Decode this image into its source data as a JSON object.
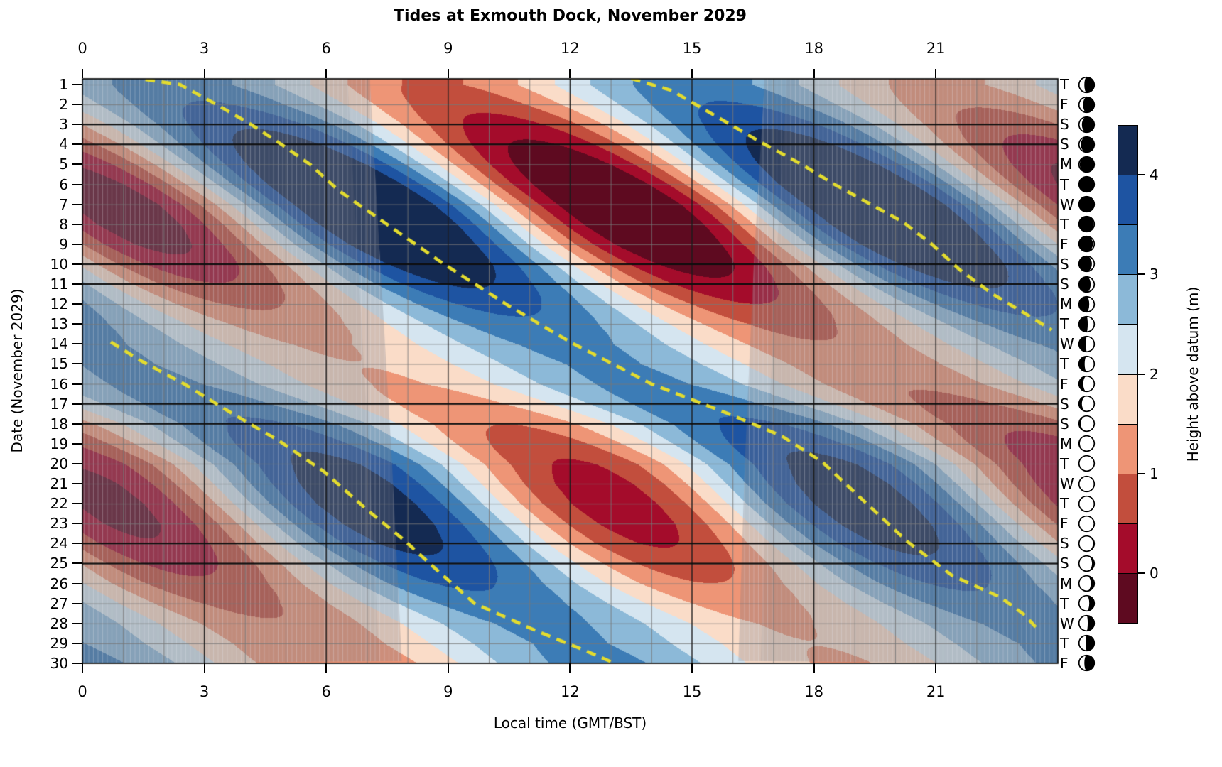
{
  "title": "Tides at Exmouth Dock, November 2029",
  "xlabel": "Local time (GMT/BST)",
  "ylabel": "Date (November 2029)",
  "chart_data": {
    "type": "heatmap",
    "subtype": "filled_contour_tide_raster",
    "title": "Tides at Exmouth Dock, November 2029",
    "xlabel": "Local time (GMT/BST)",
    "ylabel": "Date (November 2029)",
    "x_range_hours": [
      0,
      24
    ],
    "y_range_days": [
      1,
      30
    ],
    "x_ticks": [
      0,
      3,
      6,
      9,
      12,
      15,
      18,
      21
    ],
    "grid": {
      "minor_hour_step": 1,
      "major_hour_step": 3,
      "weekend_dates": [
        3,
        4,
        10,
        11,
        17,
        18,
        24,
        25
      ]
    },
    "colorbar": {
      "label": "Height above datum (m)",
      "levels": [
        -0.5,
        0,
        0.5,
        1,
        1.5,
        2,
        2.5,
        3,
        3.5,
        4,
        4.5
      ],
      "colors": [
        "#5e0a20",
        "#a40c2b",
        "#c24e3d",
        "#ee9576",
        "#fadcc8",
        "#d5e5f0",
        "#8cb9d8",
        "#3c7cb6",
        "#1e54a2",
        "#142a52"
      ],
      "tick_labels": [
        4,
        3,
        2,
        1,
        0
      ]
    },
    "tide_model": {
      "mean_level_m": 2.2,
      "semidiurnal_period_h": 12.42,
      "diurnal_amplitude_m": 0.2,
      "diurnal_period_h": 24.84,
      "diurnal_phase_offset_h": 6.2,
      "amplitude_m": [
        1.08,
        1.35,
        1.72,
        2.1,
        2.44,
        2.69,
        2.8,
        2.75,
        2.55,
        2.25,
        1.87,
        1.49,
        1.17,
        0.96,
        0.89,
        0.95,
        1.13,
        1.4,
        1.7,
        1.97,
        2.14,
        2.2,
        2.13,
        1.95,
        1.68,
        1.39,
        1.13,
        0.95,
        0.89,
        0.97
      ],
      "high_water_hour": [
        2.4,
        3.28,
        4.15,
        4.88,
        5.6,
        6.3,
        7.0,
        7.6,
        8.2,
        8.9,
        9.6,
        10.4,
        11.25,
        12.1,
        13.05,
        14.0,
        15.3,
        16.6,
        17.45,
        18.3,
        18.8,
        19.3,
        19.85,
        20.4,
        21.05,
        21.7,
        22.55,
        23.5,
        24.2,
        24.9
      ]
    },
    "night_shading": {
      "overlay_color": "#7d7d88",
      "outer_alpha": 0.3,
      "inner_alpha": 0.14,
      "twilight_width_h": 0.55,
      "hatch_spacing_px": 6.5,
      "sunrise": [
        [
          1,
          7.08
        ],
        [
          10,
          7.33
        ],
        [
          20,
          7.62
        ],
        [
          30,
          7.86
        ]
      ],
      "sunset": [
        [
          1,
          16.78
        ],
        [
          10,
          16.52
        ],
        [
          20,
          16.3
        ],
        [
          30,
          16.14
        ]
      ]
    },
    "lunar_transit_dashes": {
      "color": "#e3dc2f",
      "curves": [
        [
          [
            0.75,
            1.55
          ],
          [
            1,
            2.4
          ],
          [
            2,
            3.3
          ],
          [
            3,
            4.15
          ],
          [
            4,
            4.9
          ],
          [
            5,
            5.6
          ],
          [
            6.3,
            6.3
          ],
          [
            8.3,
            7.7
          ],
          [
            10,
            8.9
          ],
          [
            12.1,
            10.5
          ],
          [
            13.9,
            12.0
          ],
          [
            16,
            14.0
          ],
          [
            17.5,
            15.9
          ],
          [
            18.6,
            17.2
          ],
          [
            19.9,
            18.2
          ],
          [
            22,
            19.3
          ],
          [
            23.9,
            20.3
          ],
          [
            25.6,
            21.4
          ],
          [
            26.7,
            22.6
          ],
          [
            27.6,
            23.2
          ],
          [
            28.4,
            23.55
          ]
        ],
        [
          [
            0.7,
            13.5
          ],
          [
            1.3,
            14.5
          ],
          [
            2.6,
            15.6
          ],
          [
            3.9,
            16.7
          ],
          [
            5.0,
            17.7
          ],
          [
            6.0,
            18.5
          ],
          [
            7.0,
            19.4
          ],
          [
            7.9,
            20.2
          ],
          [
            9.0,
            20.9
          ],
          [
            10.3,
            21.6
          ],
          [
            11.5,
            22.4
          ],
          [
            12.6,
            23.3
          ],
          [
            13.3,
            23.85
          ]
        ],
        [
          [
            13.9,
            0.7
          ],
          [
            14.8,
            1.4
          ],
          [
            16.0,
            2.5
          ],
          [
            17.5,
            3.7
          ],
          [
            18.8,
            4.8
          ],
          [
            20.4,
            5.95
          ],
          [
            22.3,
            7.0
          ],
          [
            23.8,
            7.9
          ],
          [
            25.1,
            8.6
          ],
          [
            27.0,
            9.65
          ],
          [
            28.4,
            11.2
          ],
          [
            29.3,
            12.3
          ],
          [
            30.0,
            13.1
          ]
        ]
      ]
    },
    "days": [
      {
        "date": 1,
        "weekday": "T",
        "moon_illum": 0.35,
        "waxing": false
      },
      {
        "date": 2,
        "weekday": "F",
        "moon_illum": 0.27,
        "waxing": false
      },
      {
        "date": 3,
        "weekday": "S",
        "moon_illum": 0.19,
        "waxing": false
      },
      {
        "date": 4,
        "weekday": "S",
        "moon_illum": 0.12,
        "waxing": false
      },
      {
        "date": 5,
        "weekday": "M",
        "moon_illum": 0.05,
        "waxing": false
      },
      {
        "date": 6,
        "weekday": "T",
        "moon_illum": 0.01,
        "waxing": false
      },
      {
        "date": 7,
        "weekday": "W",
        "moon_illum": 0.01,
        "waxing": true
      },
      {
        "date": 8,
        "weekday": "T",
        "moon_illum": 0.04,
        "waxing": true
      },
      {
        "date": 9,
        "weekday": "F",
        "moon_illum": 0.09,
        "waxing": true
      },
      {
        "date": 10,
        "weekday": "S",
        "moon_illum": 0.16,
        "waxing": true
      },
      {
        "date": 11,
        "weekday": "S",
        "moon_illum": 0.24,
        "waxing": true
      },
      {
        "date": 12,
        "weekday": "M",
        "moon_illum": 0.33,
        "waxing": true
      },
      {
        "date": 13,
        "weekday": "T",
        "moon_illum": 0.43,
        "waxing": true
      },
      {
        "date": 14,
        "weekday": "W",
        "moon_illum": 0.53,
        "waxing": true
      },
      {
        "date": 15,
        "weekday": "T",
        "moon_illum": 0.63,
        "waxing": true
      },
      {
        "date": 16,
        "weekday": "F",
        "moon_illum": 0.72,
        "waxing": true
      },
      {
        "date": 17,
        "weekday": "S",
        "moon_illum": 0.81,
        "waxing": true
      },
      {
        "date": 18,
        "weekday": "S",
        "moon_illum": 0.88,
        "waxing": true
      },
      {
        "date": 19,
        "weekday": "M",
        "moon_illum": 0.94,
        "waxing": true
      },
      {
        "date": 20,
        "weekday": "T",
        "moon_illum": 0.98,
        "waxing": true
      },
      {
        "date": 21,
        "weekday": "W",
        "moon_illum": 1.0,
        "waxing": true
      },
      {
        "date": 22,
        "weekday": "T",
        "moon_illum": 0.99,
        "waxing": false
      },
      {
        "date": 23,
        "weekday": "F",
        "moon_illum": 0.96,
        "waxing": false
      },
      {
        "date": 24,
        "weekday": "S",
        "moon_illum": 0.91,
        "waxing": false
      },
      {
        "date": 25,
        "weekday": "S",
        "moon_illum": 0.85,
        "waxing": false
      },
      {
        "date": 26,
        "weekday": "M",
        "moon_illum": 0.77,
        "waxing": false
      },
      {
        "date": 27,
        "weekday": "T",
        "moon_illum": 0.67,
        "waxing": false
      },
      {
        "date": 28,
        "weekday": "W",
        "moon_illum": 0.57,
        "waxing": false
      },
      {
        "date": 29,
        "weekday": "T",
        "moon_illum": 0.46,
        "waxing": false
      },
      {
        "date": 30,
        "weekday": "F",
        "moon_illum": 0.35,
        "waxing": false
      }
    ]
  }
}
